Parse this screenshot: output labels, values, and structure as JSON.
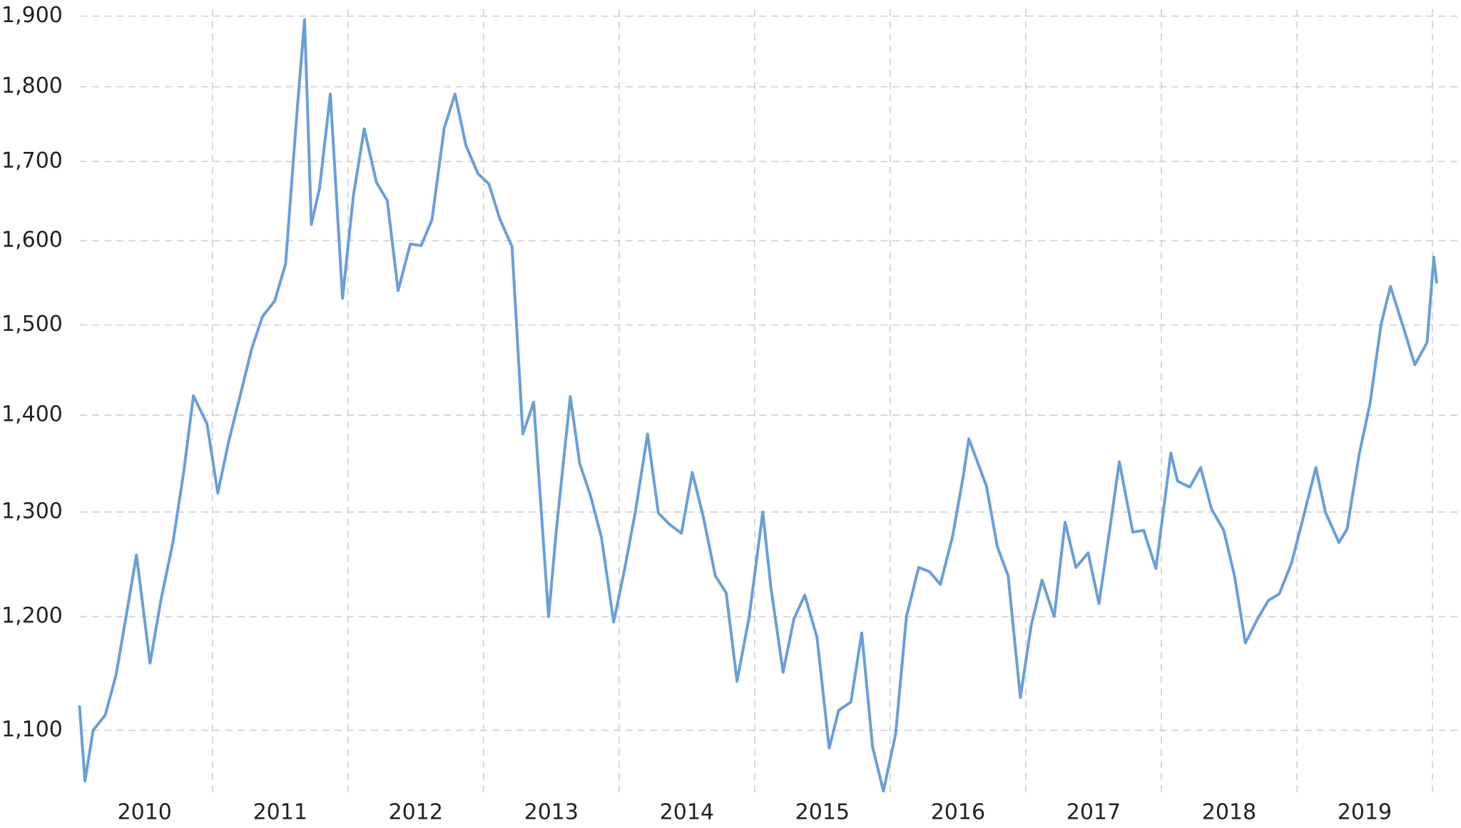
{
  "chart_data": {
    "type": "line",
    "log_scale": true,
    "grid": true,
    "color": "#6a9fd8",
    "x": [
      2010.02,
      2010.06,
      2010.12,
      2010.21,
      2010.29,
      2010.37,
      2010.44,
      2010.54,
      2010.62,
      2010.71,
      2010.79,
      2010.86,
      2010.96,
      2011.04,
      2011.12,
      2011.21,
      2011.29,
      2011.37,
      2011.46,
      2011.54,
      2011.62,
      2011.68,
      2011.73,
      2011.79,
      2011.87,
      2011.96,
      2012.04,
      2012.12,
      2012.21,
      2012.29,
      2012.37,
      2012.46,
      2012.54,
      2012.62,
      2012.71,
      2012.79,
      2012.87,
      2012.96,
      2013.04,
      2013.12,
      2013.21,
      2013.29,
      2013.37,
      2013.48,
      2013.54,
      2013.64,
      2013.71,
      2013.79,
      2013.87,
      2013.96,
      2014.04,
      2014.12,
      2014.21,
      2014.29,
      2014.37,
      2014.46,
      2014.54,
      2014.62,
      2014.71,
      2014.79,
      2014.87,
      2014.96,
      2015.06,
      2015.12,
      2015.21,
      2015.29,
      2015.37,
      2015.46,
      2015.55,
      2015.62,
      2015.71,
      2015.79,
      2015.87,
      2015.95,
      2016.04,
      2016.12,
      2016.21,
      2016.29,
      2016.37,
      2016.46,
      2016.54,
      2016.58,
      2016.71,
      2016.79,
      2016.87,
      2016.96,
      2017.04,
      2017.12,
      2017.21,
      2017.29,
      2017.37,
      2017.46,
      2017.54,
      2017.62,
      2017.69,
      2017.79,
      2017.87,
      2017.96,
      2018.07,
      2018.12,
      2018.21,
      2018.29,
      2018.37,
      2018.46,
      2018.54,
      2018.62,
      2018.71,
      2018.79,
      2018.87,
      2018.96,
      2019.04,
      2019.14,
      2019.21,
      2019.31,
      2019.37,
      2019.46,
      2019.54,
      2019.62,
      2019.69,
      2019.79,
      2019.87,
      2019.96,
      2020.01,
      2020.03
    ],
    "values": [
      1120,
      1058,
      1100,
      1113,
      1148,
      1205,
      1258,
      1158,
      1215,
      1271,
      1342,
      1421,
      1391,
      1319,
      1372,
      1424,
      1473,
      1510,
      1528,
      1572,
      1756,
      1895,
      1620,
      1665,
      1790,
      1531,
      1656,
      1743,
      1673,
      1650,
      1540,
      1596,
      1594,
      1626,
      1744,
      1790,
      1721,
      1684,
      1671,
      1627,
      1593,
      1380,
      1414,
      1200,
      1286,
      1420,
      1349,
      1316,
      1275,
      1195,
      1244,
      1300,
      1380,
      1299,
      1288,
      1279,
      1340,
      1296,
      1238,
      1222,
      1142,
      1200,
      1300,
      1227,
      1150,
      1198,
      1220,
      1181,
      1085,
      1117,
      1124,
      1185,
      1086,
      1050,
      1097,
      1200,
      1246,
      1242,
      1230,
      1276,
      1337,
      1375,
      1326,
      1266,
      1238,
      1128,
      1192,
      1234,
      1200,
      1290,
      1246,
      1260,
      1212,
      1283,
      1351,
      1280,
      1282,
      1245,
      1360,
      1331,
      1325,
      1345,
      1303,
      1282,
      1238,
      1176,
      1198,
      1215,
      1221,
      1250,
      1291,
      1345,
      1300,
      1270,
      1283,
      1359,
      1413,
      1500,
      1545,
      1495,
      1455,
      1480,
      1580,
      1550
    ],
    "xlim": [
      2009.97,
      2020.2
    ],
    "xticks": [
      {
        "value": 2010.5,
        "label": "2010"
      },
      {
        "value": 2011.5,
        "label": "2011"
      },
      {
        "value": 2012.5,
        "label": "2012"
      },
      {
        "value": 2013.5,
        "label": "2013"
      },
      {
        "value": 2014.5,
        "label": "2014"
      },
      {
        "value": 2015.5,
        "label": "2015"
      },
      {
        "value": 2016.5,
        "label": "2016"
      },
      {
        "value": 2017.5,
        "label": "2017"
      },
      {
        "value": 2018.5,
        "label": "2018"
      },
      {
        "value": 2019.5,
        "label": "2019"
      }
    ],
    "xgrid": [
      2011,
      2012,
      2013,
      2014,
      2015,
      2016,
      2017,
      2018,
      2019,
      2020
    ],
    "ylim": [
      1045,
      1910
    ],
    "yticks": [
      {
        "value": 1100,
        "label": "1,100"
      },
      {
        "value": 1200,
        "label": "1,200"
      },
      {
        "value": 1300,
        "label": "1,300"
      },
      {
        "value": 1400,
        "label": "1,400"
      },
      {
        "value": 1500,
        "label": "1,500"
      },
      {
        "value": 1600,
        "label": "1,600"
      },
      {
        "value": 1700,
        "label": "1,700"
      },
      {
        "value": 1800,
        "label": "1,800"
      },
      {
        "value": 1900,
        "label": "1,900"
      }
    ]
  }
}
